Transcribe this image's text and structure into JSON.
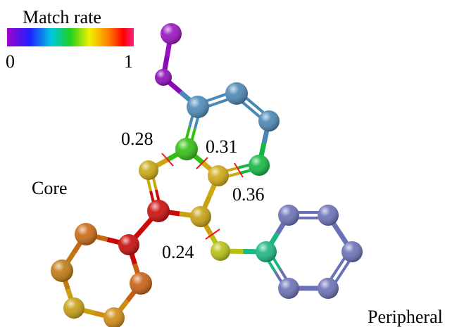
{
  "colorbar": {
    "title": "Match rate",
    "min": 0,
    "max": 1
  },
  "region_labels": {
    "core": "Core",
    "peripheral": "Peripheral"
  },
  "bond_labels": [
    0.28,
    0.31,
    0.36,
    0.24
  ]
}
